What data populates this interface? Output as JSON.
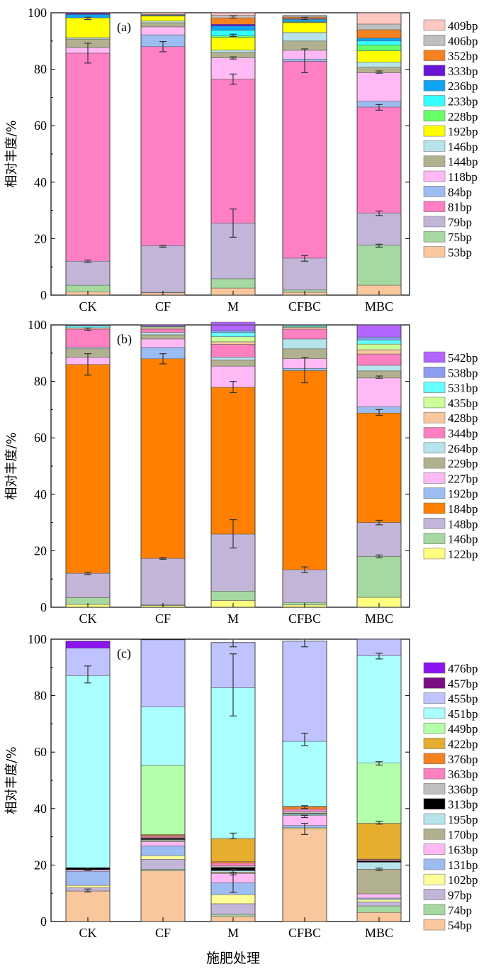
{
  "figure": {
    "xlabel": "施肥处理"
  },
  "chart_data": [
    {
      "type": "bar",
      "stacked": true,
      "panel_label": "(a)",
      "ylabel": "相对丰度/%",
      "ylim": [
        0,
        100
      ],
      "yticks": [
        0,
        20,
        40,
        60,
        80,
        100
      ],
      "categories": [
        "CK",
        "CF",
        "M",
        "CFBC",
        "MBC"
      ],
      "legend_position": "right",
      "series": [
        {
          "name": "53bp",
          "color": "#F9C79E",
          "values": [
            1.2,
            0.8,
            2.5,
            1.0,
            3.5
          ]
        },
        {
          "name": "75bp",
          "color": "#A6D9A1",
          "values": [
            2.3,
            0.2,
            3.3,
            0.8,
            14.2
          ]
        },
        {
          "name": "79bp",
          "color": "#C2B5D8",
          "values": [
            8.5,
            16.5,
            19.7,
            11.3,
            11.4
          ]
        },
        {
          "name": "81bp",
          "color": "#FF7FC5",
          "values": [
            73.7,
            70.5,
            51.0,
            69.7,
            37.5
          ]
        },
        {
          "name": "84bp",
          "color": "#9DBCF2",
          "values": [
            0.0,
            4.2,
            0.0,
            0.8,
            2.1
          ]
        },
        {
          "name": "118bp",
          "color": "#FFBAF5",
          "values": [
            2.0,
            2.8,
            7.5,
            3.1,
            10.1
          ]
        },
        {
          "name": "144bp",
          "color": "#B2B18F",
          "values": [
            3.0,
            1.5,
            2.0,
            3.3,
            1.9
          ]
        },
        {
          "name": "146bp",
          "color": "#B6E4EA",
          "values": [
            0.5,
            0.6,
            0.8,
            3.0,
            1.8
          ]
        },
        {
          "name": "192bp",
          "color": "#FFFF00",
          "values": [
            7.0,
            1.7,
            4.5,
            3.5,
            4.0
          ]
        },
        {
          "name": "228bp",
          "color": "#66FF66",
          "values": [
            0.0,
            0.2,
            0.5,
            0.2,
            2.0
          ]
        },
        {
          "name": "233bp",
          "color": "#33FFFF",
          "values": [
            0.0,
            0.0,
            2.0,
            0.2,
            1.5
          ]
        },
        {
          "name": "236bp",
          "color": "#0EA5F5",
          "values": [
            1.2,
            0.2,
            1.5,
            0.8,
            1.0
          ]
        },
        {
          "name": "333bp",
          "color": "#6A14D8",
          "values": [
            0.4,
            0.0,
            0.6,
            0.2,
            0.0
          ]
        },
        {
          "name": "352bp",
          "color": "#F58220",
          "values": [
            0.2,
            0.2,
            2.3,
            0.6,
            3.0
          ]
        },
        {
          "name": "406bp",
          "color": "#BFBFBF",
          "values": [
            0.0,
            0.0,
            0.9,
            0.5,
            2.0
          ]
        },
        {
          "name": "409bp",
          "color": "#FFC7C2",
          "values": [
            0.0,
            0.6,
            0.9,
            0.0,
            4.0
          ]
        }
      ],
      "error_bars": [
        {
          "category": "CK",
          "y": 12.0,
          "err": 0.4
        },
        {
          "category": "CK",
          "y": 85.7,
          "err": 3.5
        },
        {
          "category": "CK",
          "y": 98.0,
          "err": 0.4
        },
        {
          "category": "CF",
          "y": 17.3,
          "err": 0.3
        },
        {
          "category": "CF",
          "y": 88.0,
          "err": 1.8
        },
        {
          "category": "M",
          "y": 25.5,
          "err": 5.0
        },
        {
          "category": "M",
          "y": 76.5,
          "err": 1.8
        },
        {
          "category": "M",
          "y": 84.0,
          "err": 0.4
        },
        {
          "category": "M",
          "y": 92.0,
          "err": 0.4
        },
        {
          "category": "M",
          "y": 98.5,
          "err": 0.4
        },
        {
          "category": "CFBC",
          "y": 13.0,
          "err": 1.0
        },
        {
          "category": "CFBC",
          "y": 83.0,
          "err": 4.2
        },
        {
          "category": "CFBC",
          "y": 98.0,
          "err": 0.4
        },
        {
          "category": "MBC",
          "y": 29.0,
          "err": 0.8
        },
        {
          "category": "MBC",
          "y": 17.5,
          "err": 0.5
        },
        {
          "category": "MBC",
          "y": 66.5,
          "err": 1.0
        },
        {
          "category": "MBC",
          "y": 79.0,
          "err": 0.4
        }
      ]
    },
    {
      "type": "bar",
      "stacked": true,
      "panel_label": "(b)",
      "ylabel": "相对丰度/%",
      "ylim": [
        0,
        100
      ],
      "yticks": [
        0,
        20,
        40,
        60,
        80,
        100
      ],
      "categories": [
        "CK",
        "CF",
        "M",
        "CFBC",
        "MBC"
      ],
      "legend_position": "right",
      "series": [
        {
          "name": "122bp",
          "color": "#FFFF80",
          "values": [
            1.0,
            0.6,
            2.4,
            0.8,
            3.5
          ]
        },
        {
          "name": "146bp",
          "color": "#A6D9A1",
          "values": [
            2.4,
            0.2,
            3.3,
            0.9,
            14.5
          ]
        },
        {
          "name": "148bp",
          "color": "#C2B5D8",
          "values": [
            8.6,
            16.5,
            20.2,
            11.6,
            12.0
          ]
        },
        {
          "name": "184bp",
          "color": "#FF8000",
          "values": [
            74.0,
            70.7,
            52.0,
            70.5,
            38.8
          ]
        },
        {
          "name": "192bp",
          "color": "#9DBCF2",
          "values": [
            0.0,
            4.0,
            0.0,
            0.8,
            2.2
          ]
        },
        {
          "name": "227bp",
          "color": "#FFBAF5",
          "values": [
            2.5,
            3.0,
            7.5,
            3.4,
            10.2
          ]
        },
        {
          "name": "229bp",
          "color": "#B2B18F",
          "values": [
            3.0,
            1.5,
            2.2,
            3.5,
            2.5
          ]
        },
        {
          "name": "264bp",
          "color": "#B6E4EA",
          "values": [
            0.5,
            0.8,
            1.0,
            3.5,
            2.0
          ]
        },
        {
          "name": "344bp",
          "color": "#FF80C0",
          "values": [
            6.5,
            1.2,
            4.5,
            3.5,
            4.0
          ]
        },
        {
          "name": "428bp",
          "color": "#F9C79E",
          "values": [
            0.5,
            0.5,
            0.9,
            0.6,
            1.5
          ]
        },
        {
          "name": "435bp",
          "color": "#CCFF99",
          "values": [
            0.0,
            0.3,
            1.8,
            0.2,
            2.0
          ]
        },
        {
          "name": "531bp",
          "color": "#66FFFF",
          "values": [
            0.6,
            0.2,
            1.5,
            0.5,
            1.5
          ]
        },
        {
          "name": "538bp",
          "color": "#8C9CF2",
          "values": [
            0.2,
            0.0,
            0.8,
            0.2,
            1.0
          ]
        },
        {
          "name": "542bp",
          "color": "#B266FF",
          "values": [
            0.2,
            0.5,
            2.9,
            0.0,
            4.3
          ]
        }
      ],
      "error_bars": [
        {
          "category": "CK",
          "y": 12.0,
          "err": 0.4
        },
        {
          "category": "CK",
          "y": 86.0,
          "err": 3.8
        },
        {
          "category": "CK",
          "y": 98.5,
          "err": 0.4
        },
        {
          "category": "CF",
          "y": 17.3,
          "err": 0.3
        },
        {
          "category": "CF",
          "y": 88.0,
          "err": 1.8
        },
        {
          "category": "M",
          "y": 26.0,
          "err": 5.0
        },
        {
          "category": "M",
          "y": 78.0,
          "err": 2.0
        },
        {
          "category": "CFBC",
          "y": 13.3,
          "err": 1.0
        },
        {
          "category": "CFBC",
          "y": 84.0,
          "err": 4.5
        },
        {
          "category": "MBC",
          "y": 30.0,
          "err": 0.8
        },
        {
          "category": "MBC",
          "y": 18.0,
          "err": 0.5
        },
        {
          "category": "MBC",
          "y": 69.0,
          "err": 1.0
        },
        {
          "category": "MBC",
          "y": 81.5,
          "err": 0.4
        }
      ]
    },
    {
      "type": "bar",
      "stacked": true,
      "panel_label": "(c)",
      "ylabel": "相对丰度/%",
      "ylim": [
        0,
        100
      ],
      "yticks": [
        0,
        20,
        40,
        60,
        80,
        100
      ],
      "categories": [
        "CK",
        "CF",
        "M",
        "CFBC",
        "MBC"
      ],
      "legend_position": "right",
      "series": [
        {
          "name": "54bp",
          "color": "#F9C79E",
          "values": [
            10.8,
            18.0,
            1.8,
            32.8,
            3.2
          ]
        },
        {
          "name": "74bp",
          "color": "#A6D9A1",
          "values": [
            0.0,
            0.5,
            0.7,
            0.0,
            2.3
          ]
        },
        {
          "name": "97bp",
          "color": "#C2B5D8",
          "values": [
            1.2,
            3.5,
            3.8,
            0.0,
            1.5
          ]
        },
        {
          "name": "102bp",
          "color": "#FFFF99",
          "values": [
            0.8,
            1.3,
            3.2,
            0.4,
            0.8
          ]
        },
        {
          "name": "131bp",
          "color": "#9DBCF2",
          "values": [
            5.0,
            3.5,
            4.2,
            0.8,
            0.5
          ]
        },
        {
          "name": "163bp",
          "color": "#FFBAF5",
          "values": [
            0.5,
            1.4,
            3.3,
            3.5,
            1.5
          ]
        },
        {
          "name": "170bp",
          "color": "#B2B18F",
          "values": [
            0.0,
            0.5,
            0.5,
            0.0,
            8.7
          ]
        },
        {
          "name": "195bp",
          "color": "#B6E4EA",
          "values": [
            0.0,
            0.3,
            0.5,
            0.5,
            2.5
          ]
        },
        {
          "name": "313bp",
          "color": "#000000",
          "values": [
            0.8,
            0.5,
            1.2,
            0.3,
            0.5
          ]
        },
        {
          "name": "336bp",
          "color": "#BFBFBF",
          "values": [
            0.0,
            0.2,
            0.5,
            0.7,
            0.0
          ]
        },
        {
          "name": "363bp",
          "color": "#FF80C0",
          "values": [
            0.0,
            0.5,
            1.0,
            0.8,
            0.4
          ]
        },
        {
          "name": "376bp",
          "color": "#F58220",
          "values": [
            0.0,
            0.3,
            0.5,
            0.8,
            0.2
          ]
        },
        {
          "name": "422bp",
          "color": "#E6AD2E",
          "values": [
            0.0,
            0.3,
            8.2,
            0.2,
            12.7
          ]
        },
        {
          "name": "449bp",
          "color": "#B3FFAA",
          "values": [
            0.0,
            24.5,
            0.0,
            0.0,
            21.3
          ]
        },
        {
          "name": "451bp",
          "color": "#AAFFFF",
          "values": [
            67.9,
            20.7,
            53.4,
            23.0,
            38.0
          ]
        },
        {
          "name": "455bp",
          "color": "#BFC3FF",
          "values": [
            9.8,
            23.8,
            16.0,
            35.5,
            5.9
          ]
        },
        {
          "name": "457bp",
          "color": "#7A0E80",
          "values": [
            0.0,
            0.0,
            0.0,
            0.0,
            0.0
          ]
        },
        {
          "name": "476bp",
          "color": "#8B14F0",
          "values": [
            2.5,
            0.0,
            0.0,
            0.0,
            0.0
          ]
        }
      ],
      "error_bars": [
        {
          "category": "CK",
          "y": 11.0,
          "err": 0.5
        },
        {
          "category": "CK",
          "y": 18.5,
          "err": 0.4
        },
        {
          "category": "CK",
          "y": 87.5,
          "err": 3.0
        },
        {
          "category": "M",
          "y": 13.8,
          "err": 3.5
        },
        {
          "category": "M",
          "y": 17.5,
          "err": 1.0
        },
        {
          "category": "M",
          "y": 30.3,
          "err": 1.0
        },
        {
          "category": "M",
          "y": 83.8,
          "err": 11.0
        },
        {
          "category": "M",
          "y": 98.8,
          "err": 1.5
        },
        {
          "category": "CFBC",
          "y": 32.8,
          "err": 2.0
        },
        {
          "category": "CFBC",
          "y": 37.2,
          "err": 0.4
        },
        {
          "category": "CFBC",
          "y": 40.5,
          "err": 0.5
        },
        {
          "category": "CFBC",
          "y": 64.5,
          "err": 2.2
        },
        {
          "category": "CFBC",
          "y": 98.8,
          "err": 1.5
        },
        {
          "category": "MBC",
          "y": 18.5,
          "err": 0.4
        },
        {
          "category": "MBC",
          "y": 35.0,
          "err": 0.5
        },
        {
          "category": "MBC",
          "y": 56.0,
          "err": 0.6
        },
        {
          "category": "MBC",
          "y": 94.0,
          "err": 1.0
        }
      ]
    }
  ]
}
